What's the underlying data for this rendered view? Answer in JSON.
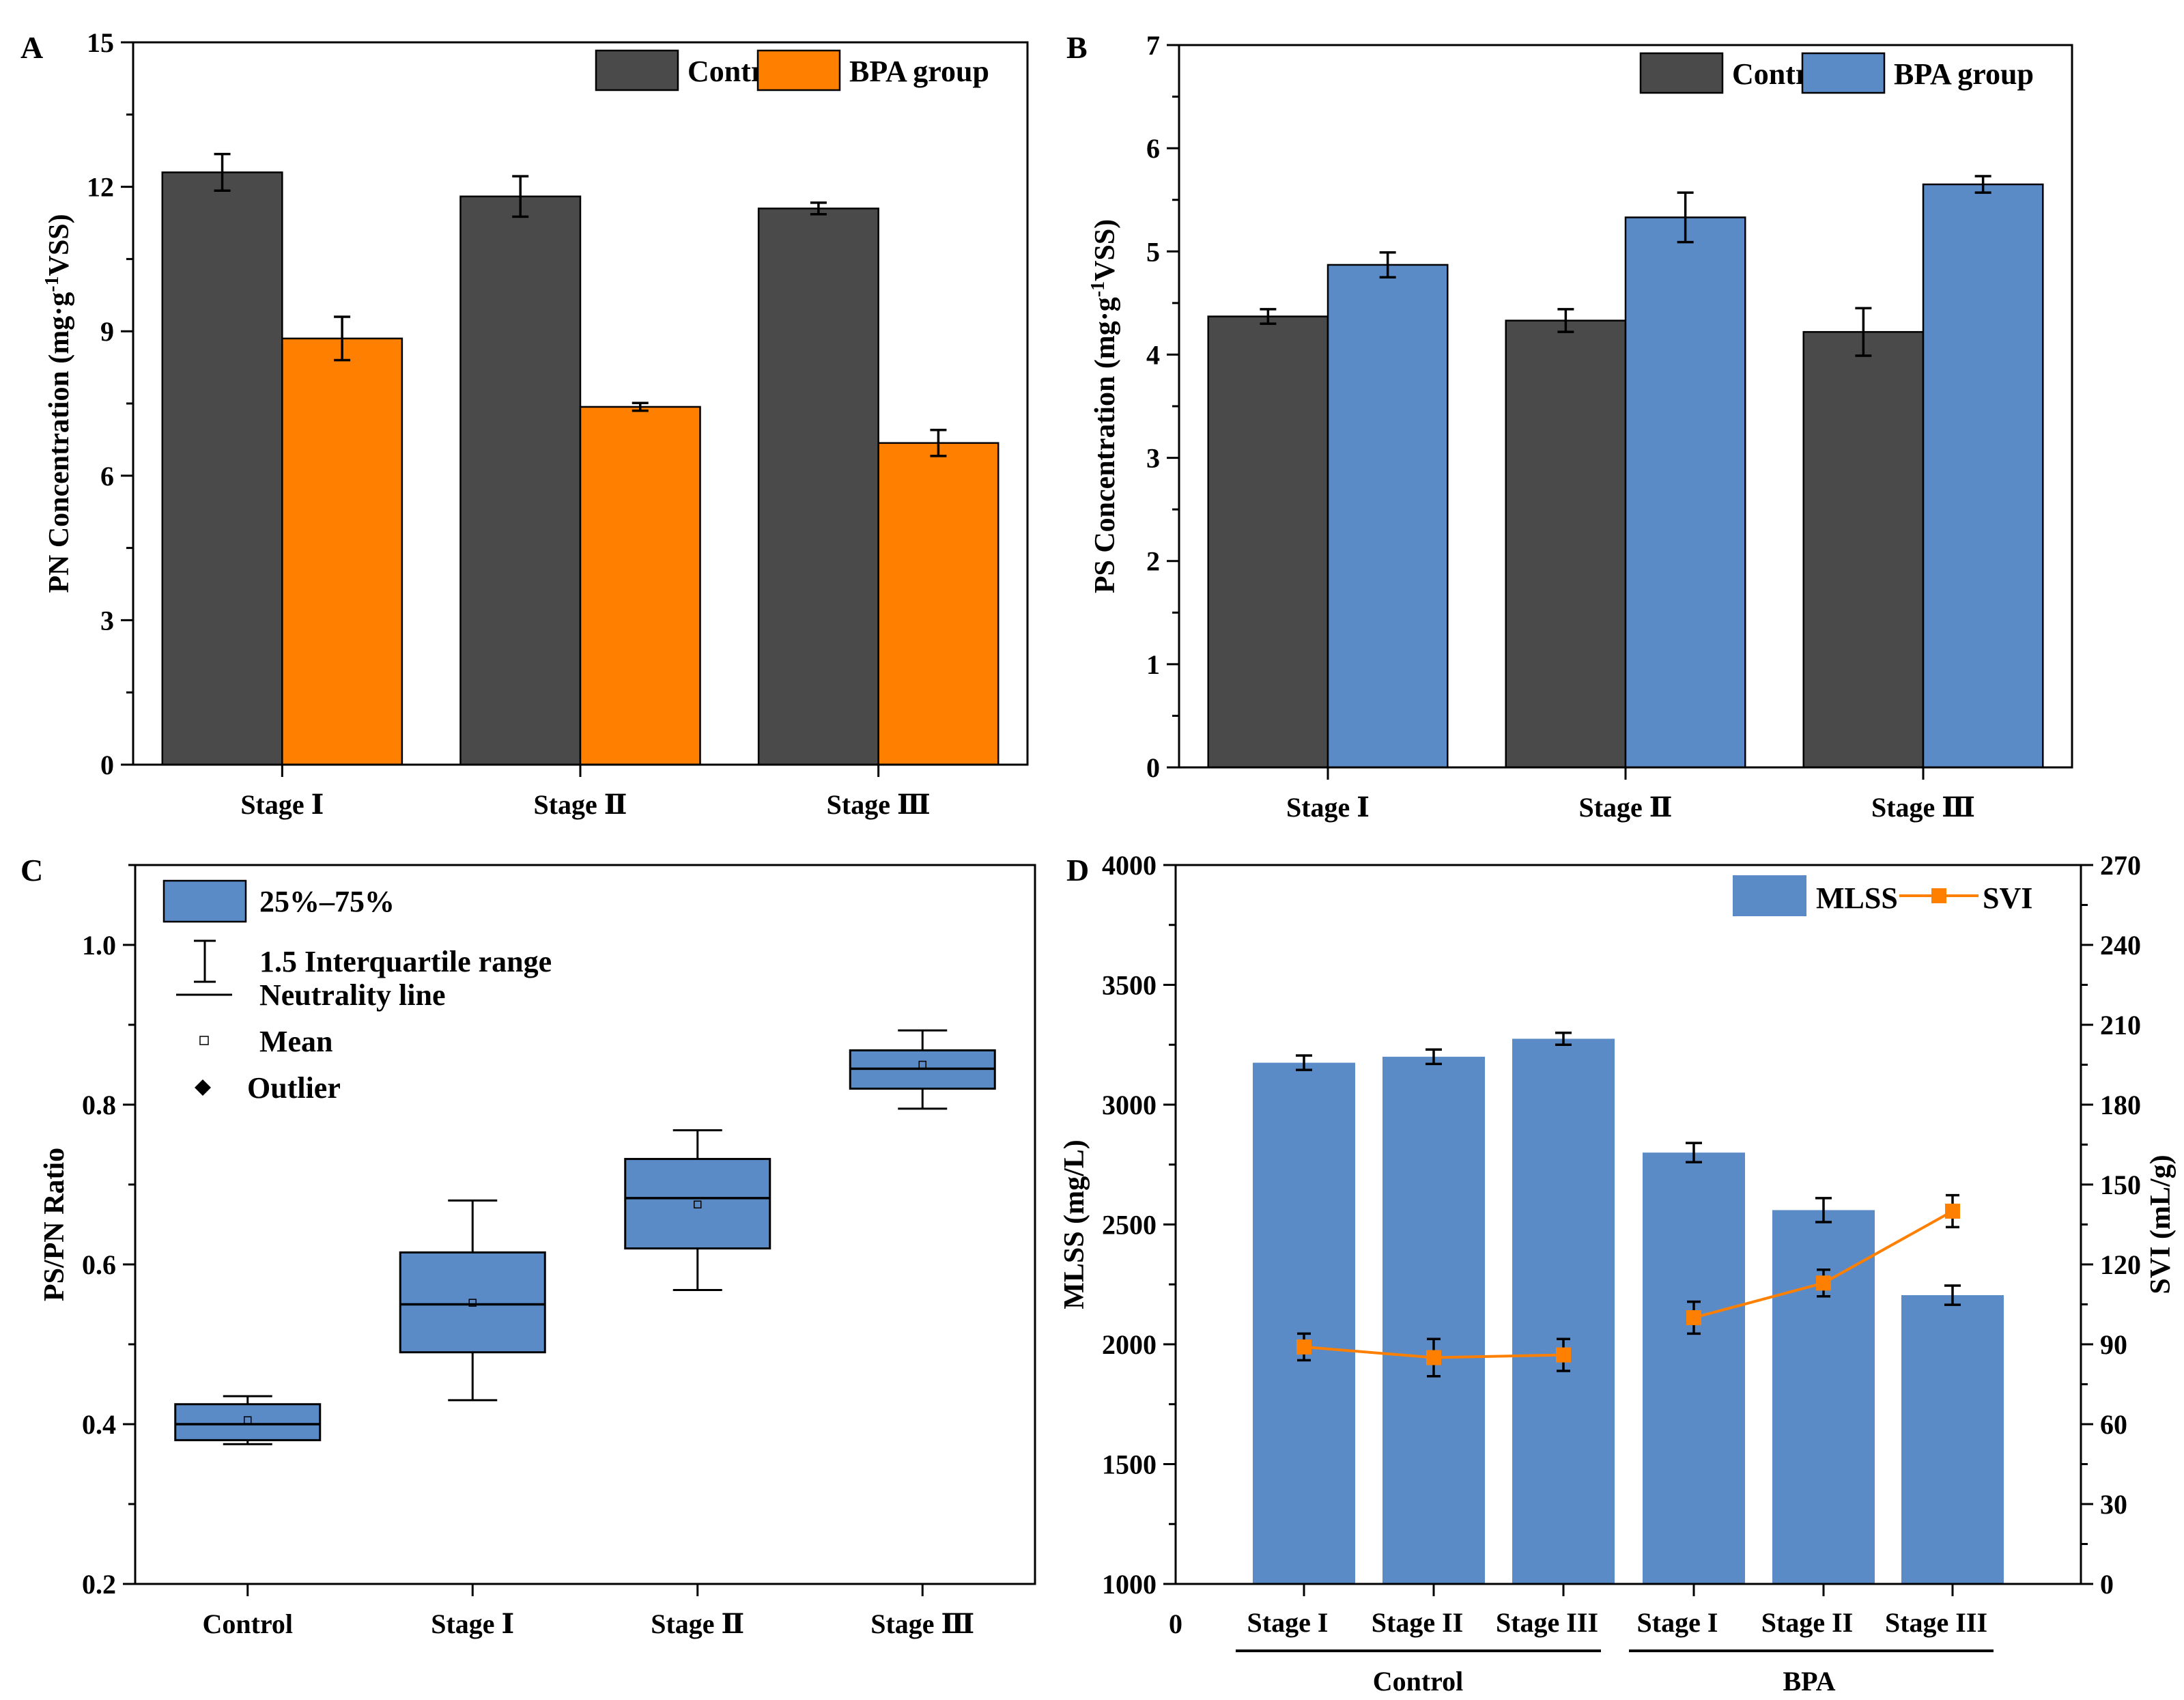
{
  "chart_data": [
    {
      "panel": "A",
      "type": "bar",
      "categories": [
        "Stage Ⅰ",
        "Stage Ⅱ",
        "Stage Ⅲ"
      ],
      "series": [
        {
          "name": "Control",
          "color": "#4a4a4a",
          "values": [
            12.3,
            11.8,
            11.55
          ],
          "errors": [
            0.38,
            0.42,
            0.12
          ]
        },
        {
          "name": "BPA group",
          "color": "#ff7f00",
          "values": [
            8.85,
            7.43,
            6.68
          ],
          "errors": [
            0.45,
            0.08,
            0.27
          ]
        }
      ],
      "ylabel_main": "PN Concentration (mg·g",
      "ylabel_sup": "-1",
      "ylabel_end": "VSS)",
      "ylim": [
        0,
        15
      ],
      "yticks": [
        0,
        3,
        6,
        9,
        12,
        15
      ],
      "legend_position": "top-right"
    },
    {
      "panel": "B",
      "type": "bar",
      "categories": [
        "Stage Ⅰ",
        "Stage Ⅱ",
        "Stage Ⅲ"
      ],
      "series": [
        {
          "name": "Control",
          "color": "#4a4a4a",
          "values": [
            4.37,
            4.33,
            4.22
          ],
          "errors": [
            0.07,
            0.11,
            0.23
          ]
        },
        {
          "name": "BPA group",
          "color": "#5b8bc6",
          "values": [
            4.87,
            5.33,
            5.65
          ],
          "errors": [
            0.12,
            0.24,
            0.08
          ]
        }
      ],
      "ylabel_main": "PS Concentration (mg·g",
      "ylabel_sup": "-1",
      "ylabel_end": "VSS)",
      "ylim": [
        0,
        7
      ],
      "yticks": [
        0,
        1,
        2,
        3,
        4,
        5,
        6,
        7
      ],
      "legend_position": "top-right"
    },
    {
      "panel": "C",
      "type": "box",
      "categories": [
        "Control",
        "Stage Ⅰ",
        "Stage Ⅱ",
        "Stage Ⅲ"
      ],
      "boxes": [
        {
          "whisker_low": 0.375,
          "q1": 0.38,
          "median": 0.4,
          "mean": 0.405,
          "q3": 0.425,
          "whisker_high": 0.435
        },
        {
          "whisker_low": 0.43,
          "q1": 0.49,
          "median": 0.55,
          "mean": 0.552,
          "q3": 0.615,
          "whisker_high": 0.68
        },
        {
          "whisker_low": 0.568,
          "q1": 0.62,
          "median": 0.683,
          "mean": 0.675,
          "q3": 0.732,
          "whisker_high": 0.768
        },
        {
          "whisker_low": 0.795,
          "q1": 0.82,
          "median": 0.845,
          "mean": 0.85,
          "q3": 0.868,
          "whisker_high": 0.893
        }
      ],
      "box_color": "#5b8bc6",
      "ylabel": "PS/PN Ratio",
      "ylim": [
        0.2,
        1.1
      ],
      "yticks": [
        0.2,
        0.4,
        0.6,
        0.8,
        1.0
      ],
      "ytick_labels": [
        "0.2",
        "0.4",
        "0.6",
        "0.8",
        "1.0"
      ],
      "legend": [
        "25%–75%",
        "1.5 Interquartile range",
        "Neutrality  line",
        "Mean",
        "Outlier"
      ],
      "legend_position": "top-left"
    },
    {
      "panel": "D",
      "type": "bar+line",
      "categories": [
        "Stage I",
        "Stage II",
        "Stage III",
        "Stage I",
        "Stage II",
        "Stage III"
      ],
      "groups": [
        {
          "label": "Control",
          "span": [
            0,
            2
          ]
        },
        {
          "label": "BPA",
          "span": [
            3,
            5
          ]
        }
      ],
      "bars": {
        "name": "MLSS",
        "color": "#5b8bc6",
        "values": [
          3175,
          3200,
          3275,
          2800,
          2560,
          2205
        ],
        "errors": [
          30,
          30,
          25,
          40,
          50,
          40
        ]
      },
      "line": {
        "name": "SVI",
        "color": "#ff7f00",
        "values": [
          89,
          85,
          86,
          100,
          113,
          140
        ],
        "errors": [
          5,
          7,
          6,
          6,
          5,
          6
        ]
      },
      "ylabel_left": "MLSS (mg/L)",
      "ylabel_right": "SVI (mL/g)",
      "ylim_left": [
        1000,
        4000
      ],
      "yticks_left": [
        1000,
        1500,
        2000,
        2500,
        3000,
        3500,
        4000
      ],
      "ylim_right": [
        0,
        270
      ],
      "yticks_right": [
        0,
        30,
        60,
        90,
        120,
        150,
        180,
        210,
        240,
        270
      ],
      "x_origin_label": "0",
      "legend_position": "top-right"
    }
  ]
}
